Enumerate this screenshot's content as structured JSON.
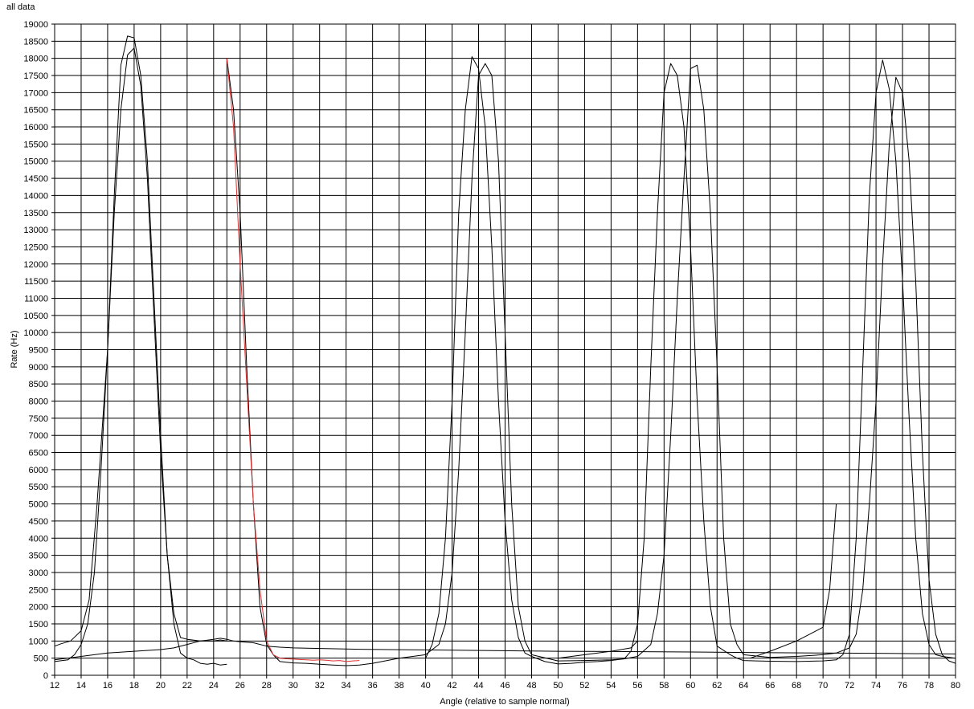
{
  "chart_data": {
    "type": "line",
    "title": "all data",
    "xlabel": "Angle (relative to sample normal)",
    "ylabel": "Rate (Hz)",
    "xlim": [
      12,
      80
    ],
    "ylim": [
      0,
      19000
    ],
    "x_ticks": [
      12,
      14,
      16,
      18,
      20,
      22,
      24,
      26,
      28,
      30,
      32,
      34,
      36,
      38,
      40,
      42,
      44,
      46,
      48,
      50,
      52,
      54,
      56,
      58,
      60,
      62,
      64,
      66,
      68,
      70,
      72,
      74,
      76,
      78,
      80
    ],
    "y_ticks": [
      0,
      500,
      1000,
      1500,
      2000,
      2500,
      3000,
      3500,
      4000,
      4500,
      5000,
      5500,
      6000,
      6500,
      7000,
      7500,
      8000,
      8500,
      9000,
      9500,
      10000,
      10500,
      11000,
      11500,
      12000,
      12500,
      13000,
      13500,
      14000,
      14500,
      15000,
      15500,
      16000,
      16500,
      17000,
      17500,
      18000,
      18500,
      19000
    ],
    "grid": true,
    "legend": "none",
    "series": [
      {
        "color": "#000000",
        "points": [
          [
            12,
            850
          ],
          [
            12.5,
            920
          ],
          [
            13.2,
            1000
          ],
          [
            14,
            1300
          ],
          [
            14.6,
            2200
          ],
          [
            15.2,
            5000
          ],
          [
            16,
            9500
          ],
          [
            16.5,
            14000
          ],
          [
            17,
            17800
          ],
          [
            17.5,
            18650
          ],
          [
            18,
            18600
          ],
          [
            18.5,
            17500
          ],
          [
            19,
            15000
          ],
          [
            19.5,
            11000
          ],
          [
            20,
            7000
          ],
          [
            20.5,
            3500
          ],
          [
            21,
            1800
          ],
          [
            21.5,
            1100
          ],
          [
            22,
            1050
          ],
          [
            23,
            1000
          ],
          [
            24,
            1050
          ],
          [
            24.5,
            1080
          ],
          [
            25,
            1050
          ],
          [
            25.5,
            1000
          ],
          [
            26,
            980
          ],
          [
            27,
            950
          ],
          [
            28,
            850
          ],
          [
            29,
            820
          ],
          [
            30,
            800
          ],
          [
            35,
            760
          ],
          [
            40,
            740
          ],
          [
            45,
            720
          ],
          [
            50,
            700
          ],
          [
            55,
            690
          ],
          [
            60,
            680
          ],
          [
            65,
            660
          ],
          [
            70,
            650
          ],
          [
            75,
            640
          ],
          [
            80,
            620
          ]
        ]
      },
      {
        "color": "#000000",
        "points": [
          [
            80,
            350
          ],
          [
            79.5,
            420
          ],
          [
            79,
            600
          ],
          [
            78.5,
            1200
          ],
          [
            78,
            2800
          ],
          [
            77.5,
            6500
          ],
          [
            77,
            11500
          ],
          [
            76.5,
            15000
          ],
          [
            76,
            17000
          ],
          [
            75.5,
            17450
          ],
          [
            75,
            15500
          ],
          [
            74.5,
            12000
          ],
          [
            74,
            8000
          ],
          [
            73.5,
            5000
          ],
          [
            73,
            2500
          ],
          [
            72.5,
            1200
          ],
          [
            72,
            800
          ],
          [
            71,
            650
          ],
          [
            70,
            600
          ],
          [
            68,
            550
          ],
          [
            66,
            520
          ],
          [
            64,
            600
          ],
          [
            63.5,
            900
          ],
          [
            63,
            1500
          ],
          [
            62.5,
            4000
          ],
          [
            62,
            9000
          ],
          [
            61.5,
            13500
          ],
          [
            61,
            16500
          ],
          [
            60.5,
            17800
          ],
          [
            60,
            17700
          ],
          [
            59.5,
            14500
          ],
          [
            59,
            11000
          ],
          [
            58.5,
            7000
          ],
          [
            58,
            3500
          ],
          [
            57.5,
            1800
          ],
          [
            57,
            900
          ],
          [
            56,
            550
          ],
          [
            55,
            480
          ],
          [
            54,
            450
          ],
          [
            52,
            430
          ],
          [
            50,
            420
          ],
          [
            48,
            600
          ],
          [
            47.5,
            1000
          ],
          [
            47,
            2000
          ],
          [
            46.5,
            5000
          ],
          [
            46,
            10000
          ],
          [
            45.5,
            15000
          ],
          [
            45,
            17500
          ],
          [
            44.5,
            17850
          ],
          [
            44,
            17500
          ],
          [
            43.5,
            14500
          ],
          [
            43,
            10000
          ],
          [
            42.5,
            6000
          ],
          [
            42,
            3000
          ],
          [
            41.5,
            1500
          ],
          [
            41,
            900
          ],
          [
            40,
            600
          ],
          [
            38,
            500
          ],
          [
            36,
            350
          ],
          [
            35,
            300
          ],
          [
            34,
            280
          ],
          [
            33,
            300
          ],
          [
            32,
            320
          ],
          [
            31,
            350
          ],
          [
            30,
            360
          ],
          [
            29,
            400
          ],
          [
            28.5,
            600
          ],
          [
            28,
            900
          ],
          [
            27.5,
            2000
          ],
          [
            27,
            5000
          ],
          [
            26.5,
            9000
          ],
          [
            26,
            13500
          ],
          [
            25.5,
            16500
          ],
          [
            25,
            18000
          ],
          [
            25,
            1000
          ],
          [
            24.5,
            1030
          ],
          [
            24,
            1000
          ],
          [
            23,
            1000
          ],
          [
            22,
            900
          ],
          [
            21,
            800
          ],
          [
            20,
            750
          ],
          [
            18,
            700
          ],
          [
            16,
            650
          ],
          [
            14,
            550
          ],
          [
            12,
            450
          ]
        ]
      },
      {
        "color": "#000000",
        "points": [
          [
            12,
            400
          ],
          [
            13,
            450
          ],
          [
            13.5,
            600
          ],
          [
            14,
            900
          ],
          [
            14.5,
            1500
          ],
          [
            15,
            3000
          ],
          [
            15.5,
            6000
          ],
          [
            16,
            9500
          ],
          [
            16.5,
            13500
          ],
          [
            17,
            16500
          ],
          [
            17.5,
            18100
          ],
          [
            18,
            18300
          ],
          [
            18.5,
            17200
          ],
          [
            19,
            14500
          ],
          [
            19.5,
            10500
          ],
          [
            20,
            6500
          ],
          [
            20.5,
            3500
          ],
          [
            21,
            1500
          ],
          [
            21.5,
            650
          ],
          [
            22,
            500
          ],
          [
            22.5,
            450
          ],
          [
            23,
            350
          ],
          [
            23.5,
            320
          ],
          [
            24,
            350
          ],
          [
            24.5,
            300
          ],
          [
            25,
            320
          ]
        ]
      },
      {
        "color": "#000000",
        "points": [
          [
            40,
            500
          ],
          [
            40.5,
            900
          ],
          [
            41,
            1800
          ],
          [
            41.5,
            4000
          ],
          [
            42,
            8000
          ],
          [
            42.5,
            13500
          ],
          [
            43,
            16500
          ],
          [
            43.5,
            18050
          ],
          [
            44,
            17700
          ],
          [
            44.5,
            16000
          ],
          [
            45,
            12500
          ],
          [
            45.5,
            8000
          ],
          [
            46,
            4500
          ],
          [
            46.5,
            2200
          ],
          [
            47,
            1100
          ],
          [
            47.5,
            650
          ],
          [
            48,
            550
          ],
          [
            49,
            400
          ],
          [
            50,
            330
          ],
          [
            51,
            350
          ],
          [
            52,
            380
          ],
          [
            53,
            400
          ],
          [
            54,
            430
          ],
          [
            55,
            480
          ],
          [
            55.5,
            700
          ],
          [
            56,
            1500
          ],
          [
            56.5,
            4000
          ],
          [
            57,
            9000
          ],
          [
            57.5,
            13500
          ],
          [
            58,
            17000
          ],
          [
            58.5,
            17850
          ],
          [
            59,
            17500
          ],
          [
            59.5,
            16000
          ],
          [
            60,
            12500
          ],
          [
            60.5,
            8000
          ],
          [
            61,
            4500
          ],
          [
            61.5,
            2000
          ],
          [
            62,
            850
          ],
          [
            63,
            600
          ],
          [
            63.5,
            500
          ],
          [
            64,
            430
          ],
          [
            65,
            420
          ],
          [
            66,
            410
          ],
          [
            68,
            400
          ],
          [
            70,
            420
          ],
          [
            71,
            450
          ],
          [
            71.5,
            600
          ],
          [
            72,
            1200
          ],
          [
            72.5,
            4000
          ],
          [
            73,
            9000
          ],
          [
            73.5,
            14000
          ],
          [
            74,
            17000
          ],
          [
            74.5,
            17950
          ],
          [
            75,
            17100
          ],
          [
            75.5,
            15000
          ],
          [
            76,
            11500
          ],
          [
            76.5,
            7500
          ],
          [
            77,
            4000
          ],
          [
            77.5,
            1800
          ],
          [
            78,
            900
          ],
          [
            78.5,
            600
          ],
          [
            79,
            550
          ],
          [
            80,
            500
          ]
        ]
      },
      {
        "color": "#000000",
        "points": [
          [
            50,
            500
          ],
          [
            52,
            600
          ],
          [
            54,
            700
          ],
          [
            55.5,
            800
          ],
          [
            56,
            1000
          ]
        ]
      },
      {
        "color": "#000000",
        "points": [
          [
            64.5,
            500
          ],
          [
            66,
            700
          ],
          [
            68,
            1000
          ],
          [
            70,
            1400
          ],
          [
            70.5,
            2500
          ],
          [
            71,
            5000
          ]
        ]
      },
      {
        "color": "#e03030",
        "points": [
          [
            25,
            18000
          ],
          [
            25.5,
            16000
          ],
          [
            26,
            12000
          ],
          [
            26.5,
            8500
          ],
          [
            27,
            5000
          ],
          [
            27.5,
            2500
          ],
          [
            28,
            1000
          ],
          [
            28.5,
            600
          ],
          [
            29,
            500
          ],
          [
            29.5,
            480
          ],
          [
            30,
            470
          ],
          [
            30.5,
            460
          ],
          [
            31,
            450
          ],
          [
            31.5,
            440
          ],
          [
            32,
            450
          ],
          [
            32.5,
            440
          ],
          [
            33,
            420
          ],
          [
            33.5,
            430
          ],
          [
            34,
            400
          ],
          [
            34.5,
            420
          ],
          [
            35,
            430
          ]
        ]
      }
    ]
  }
}
